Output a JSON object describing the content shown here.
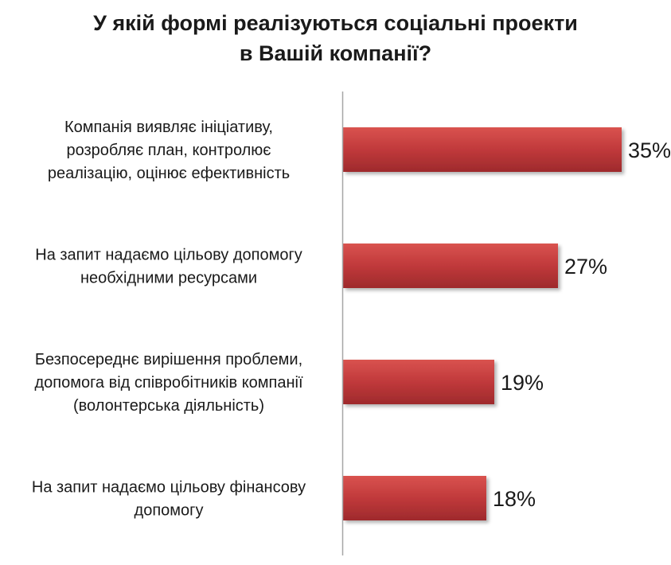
{
  "chart_data": {
    "type": "bar",
    "orientation": "horizontal",
    "title": [
      "У якій формі реалізуються соціальні проекти",
      "в Вашій компанії?"
    ],
    "categories": [
      [
        "Компанія виявляє ініціативу,",
        "розробляє план, контролює",
        "реалізацію, оцінює ефективність"
      ],
      [
        "На запит надаємо цільову допомогу",
        "необхідними ресурсами"
      ],
      [
        "Безпосереднє вирішення проблеми,",
        "допомога від співробітників компанії",
        "(волонтерська діяльність)"
      ],
      [
        "На запит надаємо цільову фінансову",
        "допомогу"
      ]
    ],
    "values": [
      35,
      27,
      19,
      18
    ],
    "value_labels": [
      "35%",
      "27%",
      "19%",
      "18%"
    ],
    "xlim": [
      0,
      40
    ],
    "grid": false,
    "bar_color": "#c0393b"
  }
}
